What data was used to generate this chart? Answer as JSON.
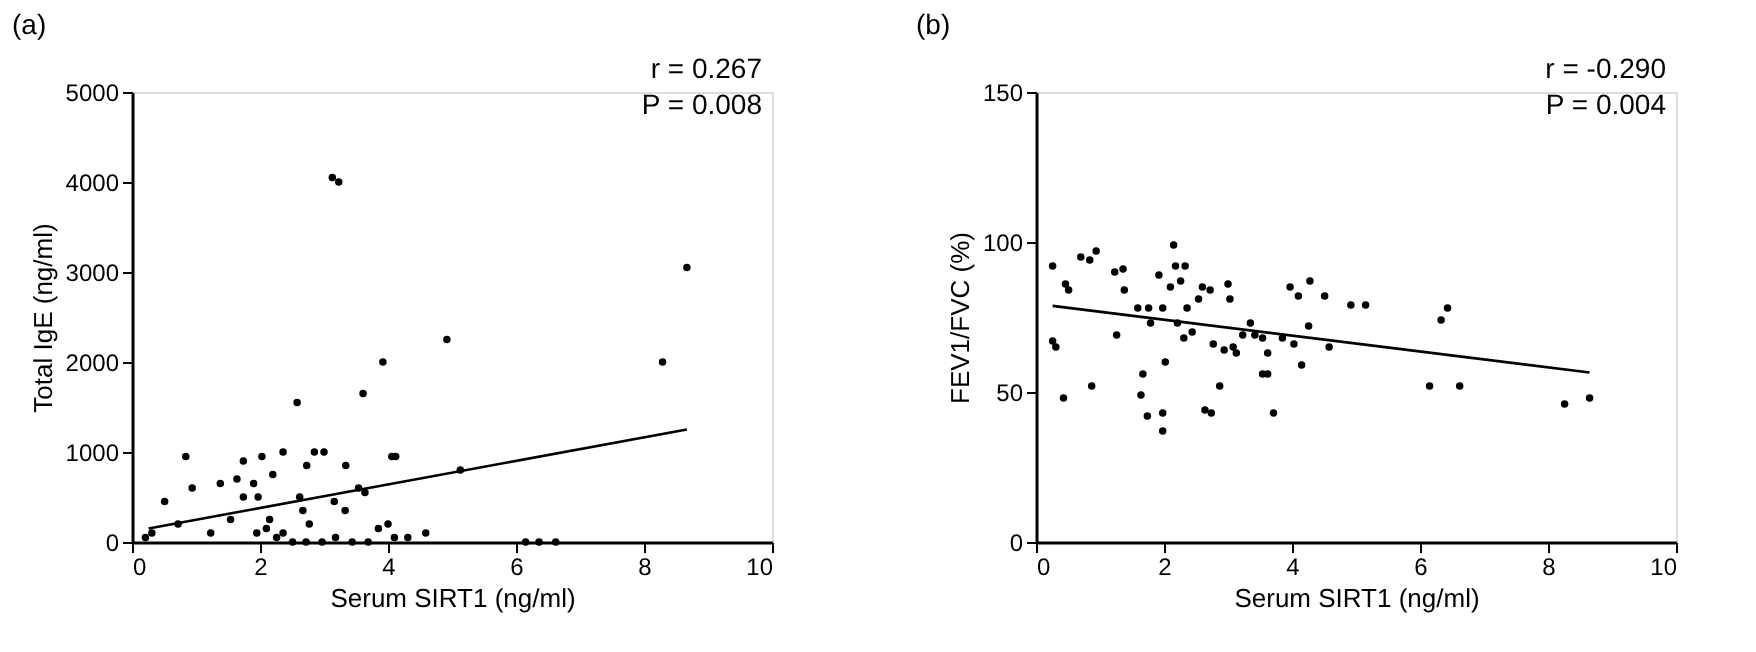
{
  "chart_data": [
    {
      "type": "scatter",
      "title": "(a)",
      "xlabel": "Serum SIRT1 (ng/ml)",
      "ylabel": "Total IgE (ng/ml)",
      "xlim": [
        0,
        10
      ],
      "ylim": [
        0,
        5000
      ],
      "xticks": [
        0,
        2,
        4,
        6,
        8,
        10
      ],
      "yticks": [
        0,
        1000,
        2000,
        3000,
        4000,
        5000
      ],
      "grid": false,
      "annotations": [
        "r = 0.267",
        "P = 0.008"
      ],
      "series": [
        {
          "color": "#000000",
          "marker": "circle",
          "x": [
            3.13,
            3.23,
            8.67,
            4.92,
            8.29,
            3.92,
            3.61,
            2.58,
            0.84,
            1.74,
            2.03,
            2.36,
            2.85,
            3.0,
            2.73,
            3.34,
            4.06,
            4.12,
            0.94,
            1.38,
            1.64,
            1.9,
            2.2,
            0.51,
            1.74,
            1.97,
            2.62,
            3.16,
            3.54,
            3.64,
            3.33,
            5.13,
            0.72,
            1.23,
            1.54,
            2.15,
            2.67,
            2.77,
            1.95,
            2.1,
            2.26,
            2.36,
            2.51,
            2.72,
            2.97,
            3.18,
            3.44,
            3.69,
            3.85,
            4.0,
            4.1,
            4.31,
            4.59,
            6.15,
            6.36,
            6.62,
            0.21,
            0.31
          ],
          "values": [
            4050,
            4000,
            3050,
            2250,
            2000,
            2000,
            1650,
            1550,
            950,
            900,
            950,
            1000,
            1000,
            1000,
            850,
            850,
            950,
            950,
            600,
            650,
            700,
            650,
            750,
            450,
            500,
            500,
            500,
            450,
            600,
            550,
            350,
            800,
            200,
            100,
            250,
            250,
            350,
            200,
            100,
            150,
            50,
            100,
            0,
            0,
            0,
            50,
            0,
            0,
            150,
            200,
            50,
            50,
            100,
            0,
            0,
            0,
            50,
            100
          ]
        },
        {
          "type": "line",
          "color": "#000000",
          "line_style": "solid",
          "x": [
            0.26,
            8.67
          ],
          "values": [
            150,
            1250
          ]
        }
      ]
    },
    {
      "type": "scatter",
      "title": "(b)",
      "xlabel": "Serum SIRT1 (ng/ml)",
      "ylabel": "FEV1/FVC (%)",
      "xlim": [
        0,
        10
      ],
      "ylim": [
        0,
        150
      ],
      "xticks": [
        0,
        2,
        4,
        6,
        8,
        10
      ],
      "yticks": [
        0,
        50,
        100,
        150
      ],
      "grid": false,
      "annotations": [
        "r = -0.290",
        "P = 0.004"
      ],
      "series": [
        {
          "color": "#000000",
          "marker": "circle",
          "x": [
            0.26,
            0.26,
            0.31,
            0.43,
            0.46,
            0.51,
            0.7,
            0.84,
            0.94,
            0.87,
            1.23,
            1.36,
            1.38,
            1.26,
            1.59,
            1.76,
            1.79,
            1.67,
            1.64,
            1.74,
            1.98,
            1.98,
            2.02,
            1.92,
            1.98,
            2.15,
            2.18,
            2.33,
            2.1,
            2.26,
            2.36,
            2.21,
            2.31,
            2.44,
            2.54,
            2.6,
            2.72,
            2.77,
            2.64,
            2.74,
            2.87,
            3.0,
            3.03,
            2.94,
            3.08,
            3.13,
            3.23,
            3.35,
            3.42,
            3.54,
            3.54,
            3.62,
            3.62,
            3.71,
            3.85,
            3.97,
            4.03,
            4.1,
            4.15,
            4.26,
            4.28,
            4.51,
            4.58,
            4.92,
            5.15,
            6.15,
            6.33,
            6.43,
            6.62,
            8.26,
            8.65
          ],
          "values": [
            92,
            67,
            65,
            48,
            86,
            84,
            95,
            94,
            97,
            52,
            90,
            91,
            84,
            69,
            78,
            78,
            73,
            56,
            49,
            42,
            43,
            37,
            60,
            89,
            78,
            99,
            92,
            92,
            85,
            87,
            78,
            73,
            68,
            70,
            81,
            85,
            84,
            66,
            44,
            43,
            52,
            86,
            81,
            64,
            65,
            63,
            69,
            73,
            69,
            68,
            56,
            56,
            63,
            43,
            68,
            85,
            66,
            82,
            59,
            72,
            87,
            82,
            65,
            79,
            79,
            52,
            74,
            78,
            52,
            46,
            48
          ]
        },
        {
          "type": "line",
          "color": "#000000",
          "line_style": "solid",
          "x": [
            0.26,
            8.65
          ],
          "values": [
            78.7,
            56.5
          ]
        }
      ]
    }
  ]
}
